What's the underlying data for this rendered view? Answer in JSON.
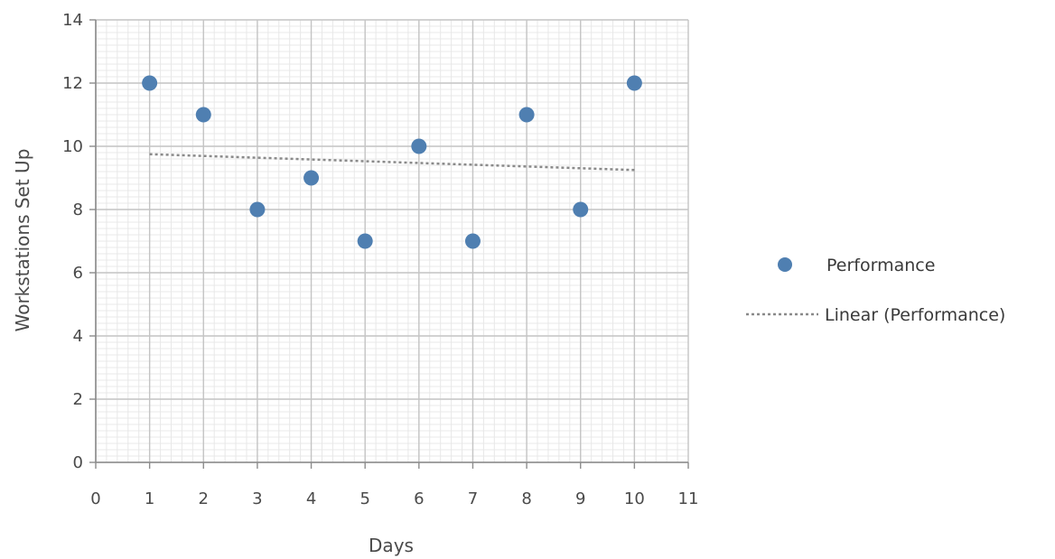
{
  "chart_data": {
    "type": "scatter",
    "xlabel": "Days",
    "ylabel": "Workstations Set Up",
    "xlim": [
      0,
      11
    ],
    "ylim": [
      0,
      14
    ],
    "x_ticks": [
      0,
      1,
      2,
      3,
      4,
      5,
      6,
      7,
      8,
      9,
      10,
      11
    ],
    "y_ticks": [
      0,
      2,
      4,
      6,
      8,
      10,
      12,
      14
    ],
    "grid": true,
    "legend_position": "right",
    "series": [
      {
        "name": "Performance",
        "color": "#4f7fb1",
        "x": [
          1,
          2,
          3,
          4,
          5,
          6,
          7,
          8,
          9,
          10
        ],
        "y": [
          12,
          11,
          8,
          9,
          7,
          10,
          7,
          11,
          8,
          12
        ]
      }
    ],
    "trendline": {
      "name": "Linear (Performance)",
      "style": "dotted",
      "color": "#8a8a8a",
      "x": [
        1,
        10
      ],
      "y": [
        9.75,
        9.25
      ]
    }
  }
}
